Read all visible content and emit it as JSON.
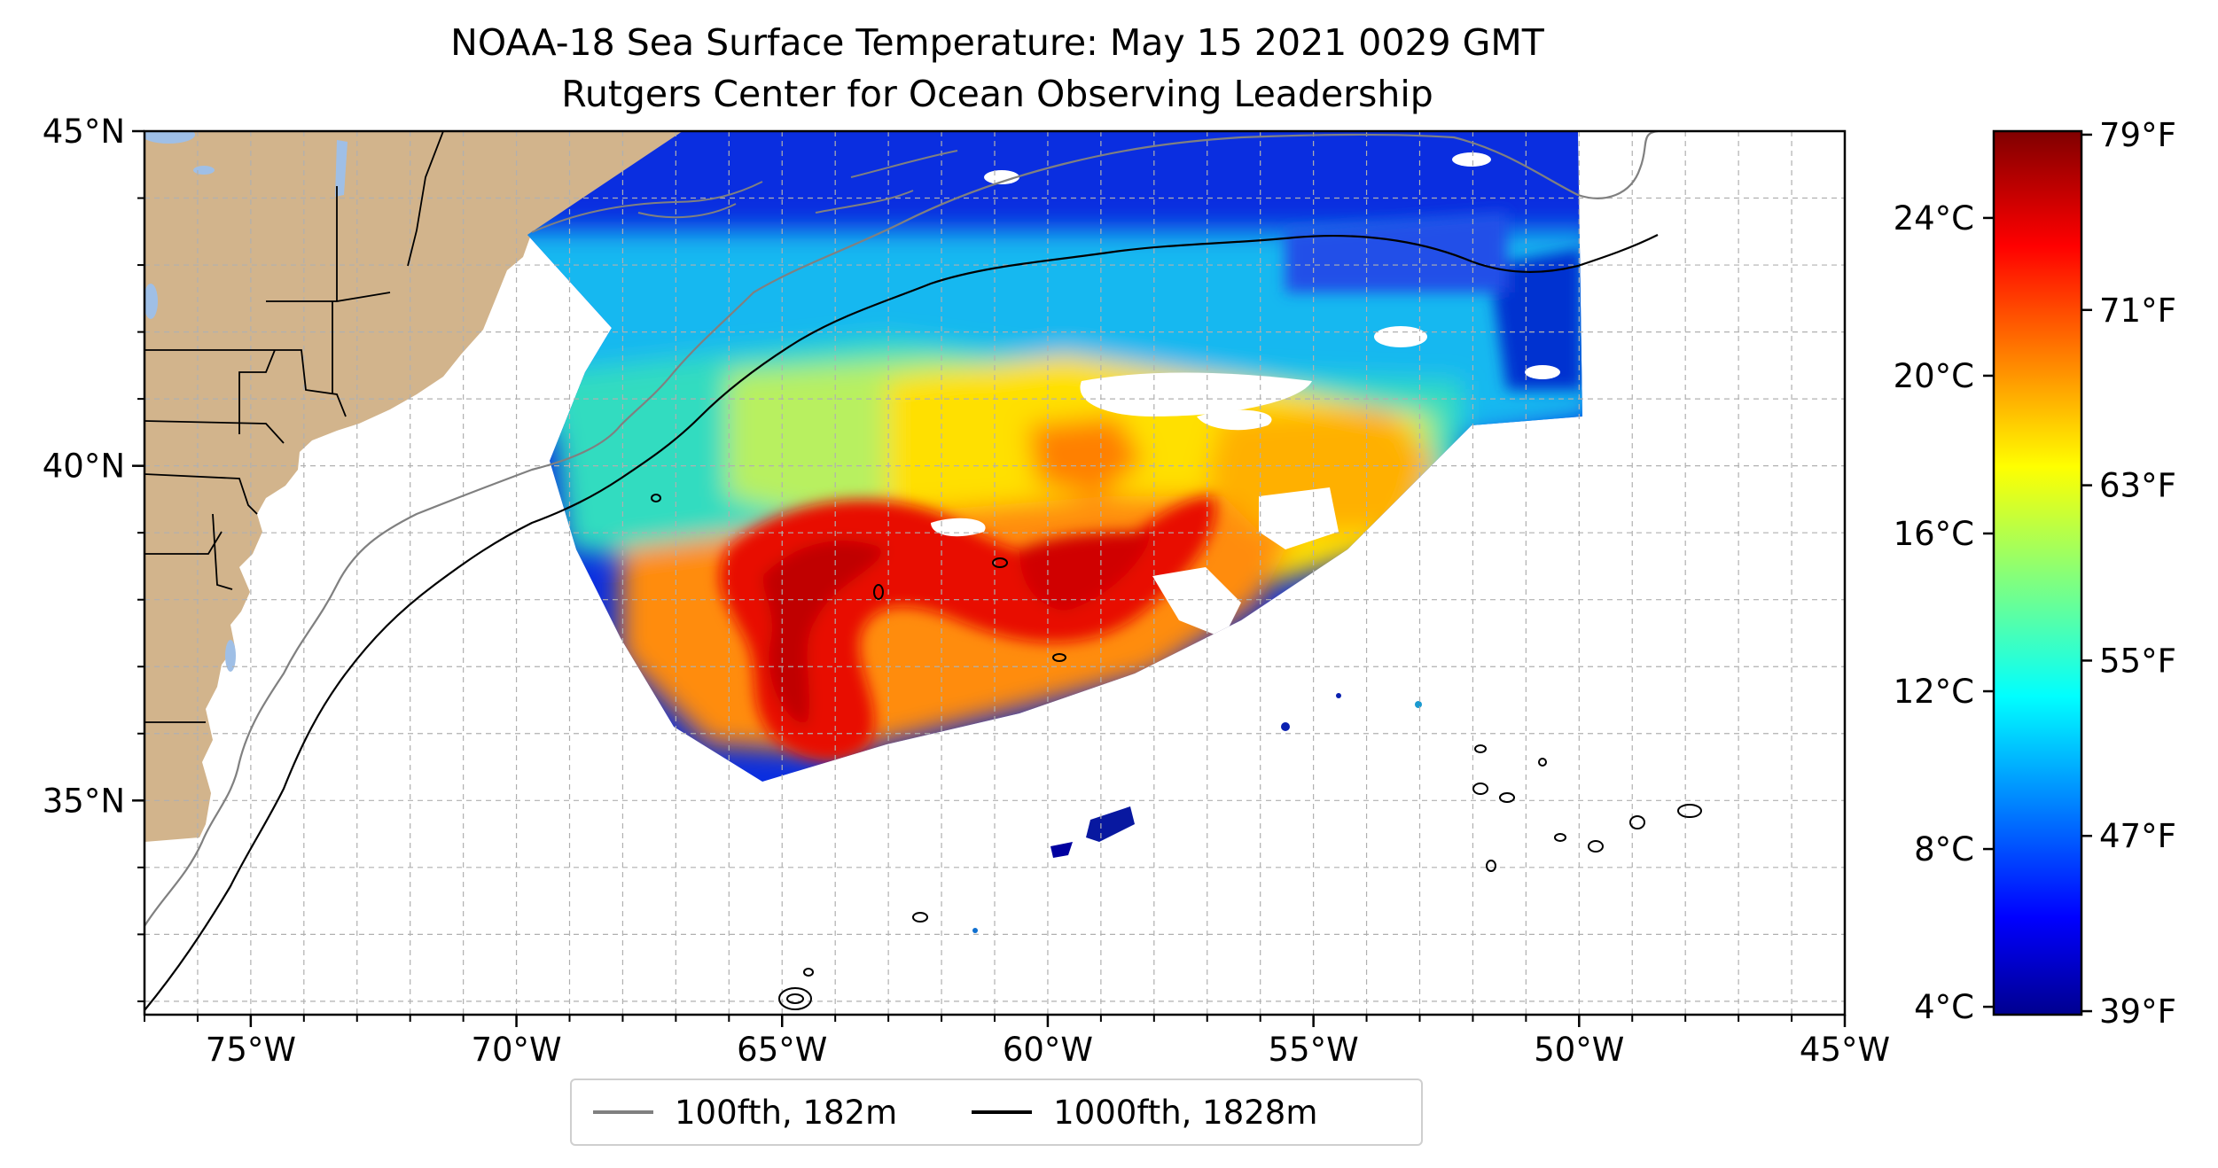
{
  "title": "NOAA-18 Sea Surface Temperature: May 15 2021 0029 GMT",
  "subtitle": "Rutgers Center for Ocean Observing Leadership",
  "map": {
    "lat_ticks": [
      {
        "lat": 45,
        "label": "45°N"
      },
      {
        "lat": 40,
        "label": "40°N"
      },
      {
        "lat": 35,
        "label": "35°N"
      }
    ],
    "lon_ticks": [
      {
        "lon": -75,
        "label": "75°W"
      },
      {
        "lon": -70,
        "label": "70°W"
      },
      {
        "lon": -65,
        "label": "65°W"
      },
      {
        "lon": -60,
        "label": "60°W"
      },
      {
        "lon": -55,
        "label": "55°W"
      },
      {
        "lon": -50,
        "label": "50°W"
      },
      {
        "lon": -45,
        "label": "45°W"
      }
    ],
    "lon_range": [
      -77,
      -45
    ],
    "lat_range": [
      31.8,
      45
    ],
    "gridlines": true,
    "land_color": "#d2b48c",
    "lake_color": "#9fbfe6"
  },
  "legend": {
    "items": [
      {
        "label": "100fth, 182m",
        "color": "#808080"
      },
      {
        "label": "1000fth, 1828m",
        "color": "#000000"
      }
    ],
    "placement": "bottom-center"
  },
  "colorbar": {
    "colormap": "jet",
    "celsius_range": [
      3.8,
      26.2
    ],
    "celsius_ticks": [
      {
        "value": 4,
        "label": "4°C"
      },
      {
        "value": 8,
        "label": "8°C"
      },
      {
        "value": 12,
        "label": "12°C"
      },
      {
        "value": 16,
        "label": "16°C"
      },
      {
        "value": 20,
        "label": "20°C"
      },
      {
        "value": 24,
        "label": "24°C"
      }
    ],
    "fahrenheit_ticks": [
      {
        "value": 39,
        "label": "39°F"
      },
      {
        "value": 47,
        "label": "47°F"
      },
      {
        "value": 55,
        "label": "55°F"
      },
      {
        "value": 63,
        "label": "63°F"
      },
      {
        "value": 71,
        "label": "71°F"
      },
      {
        "value": 79,
        "label": "79°F"
      }
    ]
  }
}
